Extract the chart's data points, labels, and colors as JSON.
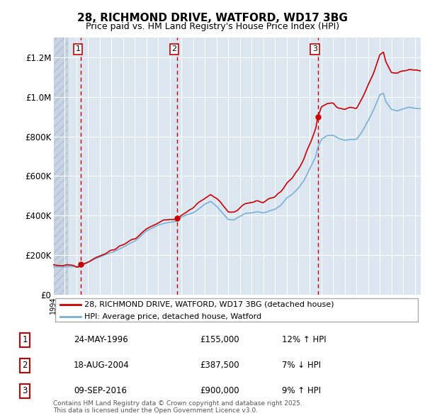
{
  "title": "28, RICHMOND DRIVE, WATFORD, WD17 3BG",
  "subtitle": "Price paid vs. HM Land Registry's House Price Index (HPI)",
  "hpi_label": "HPI: Average price, detached house, Watford",
  "price_label": "28, RICHMOND DRIVE, WATFORD, WD17 3BG (detached house)",
  "footer": "Contains HM Land Registry data © Crown copyright and database right 2025.\nThis data is licensed under the Open Government Licence v3.0.",
  "transactions": [
    {
      "num": 1,
      "date": "24-MAY-1996",
      "price": 155000,
      "hpi_pct": "12% ↑ HPI",
      "year": 1996.38
    },
    {
      "num": 2,
      "date": "18-AUG-2004",
      "price": 387500,
      "hpi_pct": "7% ↓ HPI",
      "year": 2004.63
    },
    {
      "num": 3,
      "date": "09-SEP-2016",
      "price": 900000,
      "hpi_pct": "9% ↑ HPI",
      "year": 2016.69
    }
  ],
  "ylim": [
    0,
    1300000
  ],
  "xlim_start": 1994.0,
  "xlim_end": 2025.5,
  "chart_bg": "#dce6f1",
  "fig_bg": "#ffffff",
  "hatch_end_year": 1995.3,
  "price_color": "#cc0000",
  "hpi_color": "#7ab0d4",
  "grid_color": "#ffffff",
  "dashed_line_color": "#cc0000",
  "legend_border_color": "#aaaaaa",
  "box_edge_color": "#cc0000"
}
